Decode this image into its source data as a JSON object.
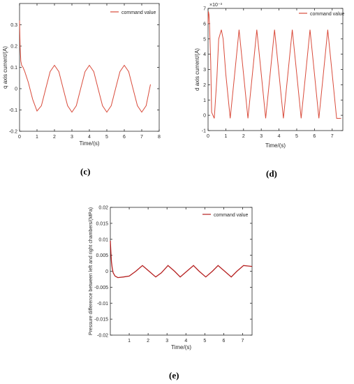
{
  "panels": [
    {
      "label": "(c)"
    },
    {
      "label": "(d)"
    },
    {
      "label": "(e)"
    }
  ],
  "chart_data": [
    {
      "type": "line",
      "xlabel": "Time/(s)",
      "ylabel": "q axis current/(A)",
      "xlim": [
        0,
        8
      ],
      "ylim": [
        -0.2,
        0.4
      ],
      "xticks": [
        "0",
        "1",
        "2",
        "3",
        "4",
        "5",
        "6",
        "7",
        "8"
      ],
      "yticks": [
        "-0.2",
        "-0.1",
        "0",
        "0.1",
        "0.2",
        "0.3"
      ],
      "legend_position": "top-right",
      "exponent_label": "",
      "series": [
        {
          "name": "command value",
          "color": "#d94b3b",
          "x": [
            0,
            0.03,
            0.07,
            0.12,
            0.2,
            0.3,
            0.5,
            0.75,
            1.0,
            1.25,
            1.5,
            1.75,
            2.0,
            2.25,
            2.5,
            2.75,
            3.0,
            3.25,
            3.5,
            3.75,
            4.0,
            4.25,
            4.5,
            4.75,
            5.0,
            5.25,
            5.5,
            5.75,
            6.0,
            6.25,
            6.5,
            6.75,
            7.0,
            7.25,
            7.5
          ],
          "y": [
            0.32,
            0.2,
            0.13,
            0.11,
            0.1,
            0.08,
            0.03,
            -0.05,
            -0.105,
            -0.08,
            0.0,
            0.08,
            0.11,
            0.08,
            0.0,
            -0.08,
            -0.11,
            -0.08,
            0.0,
            0.08,
            0.11,
            0.08,
            0.0,
            -0.08,
            -0.11,
            -0.08,
            0.0,
            0.08,
            0.11,
            0.08,
            0.0,
            -0.08,
            -0.11,
            -0.08,
            0.02
          ]
        }
      ]
    },
    {
      "type": "line",
      "xlabel": "Time/(s)",
      "ylabel": "d axis current/(A)",
      "xlim": [
        0,
        7.6
      ],
      "ylim": [
        -0.001,
        0.007
      ],
      "xticks": [
        "0",
        "1",
        "2",
        "3",
        "4",
        "5",
        "6",
        "7"
      ],
      "yticks": [
        "-1",
        "0",
        "1",
        "2",
        "3",
        "4",
        "5",
        "6",
        "7"
      ],
      "legend_position": "top-right",
      "exponent_label": "×10⁻³",
      "series": [
        {
          "name": "command value",
          "color": "#d94b3b",
          "x": [
            0,
            0.02,
            0.05,
            0.08,
            0.15,
            0.2,
            0.35,
            0.5,
            0.6,
            0.75,
            0.85,
            1.0,
            1.25,
            1.5,
            1.75,
            2.0,
            2.25,
            2.5,
            2.75,
            3.0,
            3.25,
            3.5,
            3.75,
            4.0,
            4.25,
            4.5,
            4.75,
            5.0,
            5.25,
            5.5,
            5.75,
            6.0,
            6.25,
            6.5,
            6.75,
            7.0,
            7.25,
            7.5
          ],
          "y": [
            0.006,
            0.0068,
            0.0066,
            0.006,
            0.0035,
            0.0002,
            -0.0002,
            0.0025,
            0.005,
            0.0056,
            0.005,
            0.0027,
            -0.0002,
            0.0027,
            0.0056,
            0.0027,
            -0.0002,
            0.0027,
            0.0056,
            0.0027,
            -0.0002,
            0.0027,
            0.0056,
            0.0027,
            -0.0002,
            0.0027,
            0.0056,
            0.0027,
            -0.0002,
            0.0027,
            0.0056,
            0.0027,
            -0.0002,
            0.0027,
            0.0056,
            0.0027,
            -0.0002,
            -0.0002
          ]
        }
      ]
    },
    {
      "type": "line",
      "xlabel": "Time/(s)",
      "ylabel": "Pressure difference between left and right chambers/(MPa)",
      "xlim": [
        0,
        7.5
      ],
      "ylim": [
        -0.02,
        0.02
      ],
      "xticks": [
        "1",
        "2",
        "3",
        "4",
        "5",
        "6",
        "7"
      ],
      "yticks": [
        "-0.02",
        "-0.015",
        "-0.01",
        "-0.005",
        "0",
        "0.005",
        "0.01",
        "0.015",
        "0.02"
      ],
      "legend_position": "top-right",
      "exponent_label": "",
      "series": [
        {
          "name": "command value",
          "color": "#b51f1f",
          "x": [
            0,
            0.03,
            0.06,
            0.1,
            0.15,
            0.25,
            0.4,
            0.7,
            1.0,
            1.35,
            1.7,
            2.05,
            2.4,
            2.7,
            3.05,
            3.4,
            3.7,
            4.05,
            4.4,
            4.7,
            5.05,
            5.4,
            5.7,
            6.05,
            6.4,
            6.7,
            7.05,
            7.5
          ],
          "y": [
            0.0095,
            0.006,
            0.003,
            0.001,
            -0.0005,
            -0.0015,
            -0.002,
            -0.0018,
            -0.0015,
            0.0,
            0.0018,
            0.0,
            -0.0018,
            -0.0005,
            0.0018,
            0.0,
            -0.0018,
            0.0,
            0.0018,
            0.0,
            -0.0018,
            0.0,
            0.0018,
            0.0,
            -0.0018,
            0.0,
            0.0018,
            0.0015
          ]
        }
      ]
    }
  ]
}
